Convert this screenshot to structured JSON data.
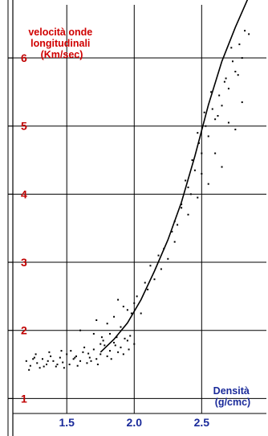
{
  "chart_data": {
    "type": "scatter",
    "ylabel_lines": [
      "velocità  onde",
      "longitudinali",
      "(Km/sec)"
    ],
    "xlabel_lines": [
      "Densità",
      "(g/cmc)"
    ],
    "xlim": [
      1.1,
      2.98
    ],
    "ylim": [
      0.78,
      6.78
    ],
    "x_ticks": [
      1.5,
      2.0,
      2.5
    ],
    "x_tick_labels": [
      "1.5",
      "2.0",
      "2.5"
    ],
    "y_ticks": [
      1,
      2,
      3,
      4,
      5,
      6
    ],
    "y_tick_labels": [
      "1",
      "2",
      "3",
      "4",
      "5",
      "6"
    ],
    "grid": true,
    "colors": {
      "points": "#000000",
      "curve": "#000000",
      "grid": "#000000",
      "y_text": "#c00000",
      "x_text": "#1a2a9a"
    },
    "trend_curve": {
      "x": [
        1.75,
        1.85,
        1.95,
        2.05,
        2.15,
        2.25,
        2.35,
        2.45,
        2.55,
        2.65,
        2.75,
        2.85
      ],
      "y": [
        1.68,
        1.87,
        2.11,
        2.45,
        2.87,
        3.33,
        3.88,
        4.56,
        5.31,
        5.95,
        6.45,
        6.9
      ]
    },
    "series": [
      {
        "x": [
          1.2,
          1.23,
          1.26,
          1.28,
          1.3,
          1.32,
          1.35,
          1.38,
          1.4,
          1.42,
          1.45,
          1.47,
          1.5,
          1.52,
          1.55,
          1.57,
          1.6,
          1.62,
          1.65,
          1.67,
          1.7,
          1.72,
          1.75,
          1.78,
          1.8,
          1.82,
          1.85,
          1.88,
          1.9,
          1.93,
          1.96,
          2.0,
          1.22,
          1.27,
          1.33,
          1.37,
          1.43,
          1.48,
          1.53,
          1.58,
          1.63,
          1.68,
          1.73,
          1.77,
          1.83,
          1.87,
          1.92,
          1.97,
          1.25,
          1.36,
          1.46,
          1.56,
          1.66,
          1.76,
          1.86,
          1.95,
          1.6,
          1.7,
          1.75,
          1.8,
          1.85,
          1.9,
          1.95,
          2.0,
          2.05,
          2.1,
          2.15,
          2.2,
          2.25,
          2.3,
          1.72,
          1.82,
          1.92,
          2.02,
          2.12,
          2.22,
          2.32,
          2.4,
          1.88,
          1.98,
          2.08,
          2.18,
          2.28,
          2.35,
          2.42,
          2.3,
          2.35,
          2.4,
          2.45,
          2.5,
          2.55,
          2.6,
          2.65,
          2.7,
          2.75,
          2.8,
          2.85,
          2.38,
          2.43,
          2.48,
          2.53,
          2.58,
          2.63,
          2.68,
          2.73,
          2.78,
          2.82,
          2.47,
          2.52,
          2.57,
          2.62,
          2.67,
          2.72,
          2.77,
          2.47,
          2.5,
          2.55,
          2.6,
          2.65,
          2.7,
          2.75,
          2.8
        ],
        "y": [
          1.55,
          1.48,
          1.6,
          1.52,
          1.45,
          1.58,
          1.5,
          1.62,
          1.55,
          1.47,
          1.6,
          1.53,
          1.65,
          1.5,
          1.58,
          1.62,
          1.55,
          1.68,
          1.52,
          1.6,
          1.72,
          1.58,
          1.65,
          1.78,
          1.62,
          1.7,
          1.82,
          1.68,
          1.75,
          1.88,
          1.72,
          1.8,
          1.42,
          1.65,
          1.47,
          1.68,
          1.5,
          1.45,
          1.7,
          1.48,
          1.75,
          1.55,
          1.5,
          1.85,
          1.58,
          1.9,
          1.65,
          1.92,
          1.58,
          1.55,
          1.7,
          1.6,
          1.66,
          1.9,
          1.78,
          1.85,
          2.0,
          1.95,
          1.8,
          2.1,
          2.2,
          2.05,
          2.3,
          2.4,
          2.25,
          2.6,
          2.75,
          2.9,
          3.05,
          3.3,
          2.15,
          1.95,
          2.35,
          2.5,
          2.95,
          3.2,
          3.55,
          3.7,
          2.45,
          2.25,
          2.7,
          3.1,
          3.45,
          3.8,
          4.0,
          3.6,
          3.85,
          4.1,
          4.35,
          4.6,
          4.85,
          5.1,
          5.3,
          5.55,
          5.8,
          6.0,
          6.35,
          4.2,
          4.5,
          4.75,
          5.0,
          5.25,
          5.45,
          5.7,
          5.95,
          6.2,
          6.4,
          4.9,
          5.2,
          5.5,
          5.15,
          5.65,
          6.15,
          5.75,
          3.95,
          4.3,
          4.15,
          4.6,
          4.4,
          5.05,
          4.95,
          5.35
        ]
      }
    ]
  }
}
